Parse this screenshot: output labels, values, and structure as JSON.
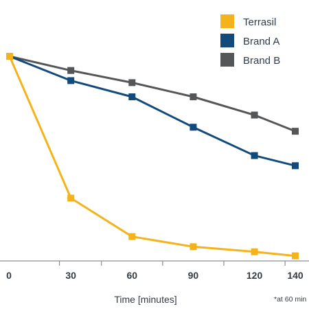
{
  "chart_data": {
    "type": "line",
    "xlabel": "Time [minutes]",
    "footnote": "*at 60 min",
    "x": [
      0,
      30,
      60,
      90,
      120,
      140
    ],
    "x_ticks": [
      0,
      30,
      60,
      90,
      120,
      140
    ],
    "xlim": [
      0,
      140
    ],
    "ylim": [
      0,
      100
    ],
    "grid": false,
    "legend_position": "top-right",
    "series": [
      {
        "name": "Terrasil",
        "color": "#f5b31b",
        "values": [
          100,
          30,
          11,
          6,
          3.5,
          1.5
        ]
      },
      {
        "name": "Brand A",
        "color": "#134a7c",
        "values": [
          100,
          88,
          80,
          65,
          51,
          46
        ]
      },
      {
        "name": "Brand B",
        "color": "#555658",
        "values": [
          100,
          93,
          87,
          80,
          71,
          63
        ]
      }
    ]
  }
}
